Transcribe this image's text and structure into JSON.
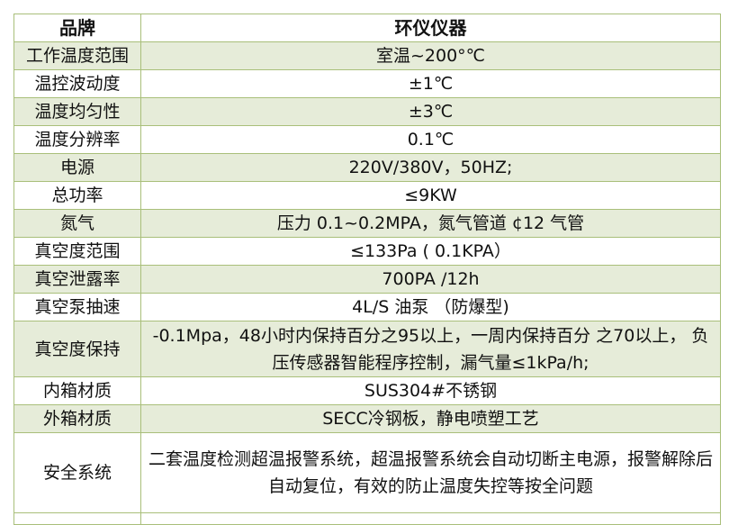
{
  "header": {
    "key": "品牌",
    "value": "环仪仪器"
  },
  "rows": [
    {
      "key": "工作温度范围",
      "value": "室温~200°℃"
    },
    {
      "key": "温控波动度",
      "value": "±1℃"
    },
    {
      "key": "温度均匀性",
      "value": "±3℃"
    },
    {
      "key": "温度分辨率",
      "value": "0.1℃"
    },
    {
      "key": "电源",
      "value": "220V/380V，50HZ;"
    },
    {
      "key": "总功率",
      "value": "≤9KW"
    },
    {
      "key": "氮气",
      "value": "压力 0.1~0.2MPA，氮气管道 ¢12 气管"
    },
    {
      "key": "真空度范围",
      "value": "≤133Pa ( 0.1KPA）"
    },
    {
      "key": "真空泄露率",
      "value": "700PA /12h"
    },
    {
      "key": "真空泵抽速",
      "value": "4L/S 油泵 （防爆型)"
    },
    {
      "key": "真空度保持",
      "value": "-0.1Mpa，48小时内保持百分之95以上，一周内保持百分 之70以上， 负压传感器智能程序控制，漏气量≤1kPa/h;"
    },
    {
      "key": "内箱材质",
      "value": "SUS304#不锈钢"
    },
    {
      "key": "外箱材质",
      "value": "SECC冷钢板，静电喷塑工艺"
    },
    {
      "key": "安全系统",
      "value": "二套温度检测超温报警系统，超温报警系统会自动切断主电源，报警解除后自动复位，有效的防止温度失控等按全问题"
    }
  ],
  "colors": {
    "border": "#a9bf7a",
    "shaded_row": "#e6ecd9"
  }
}
